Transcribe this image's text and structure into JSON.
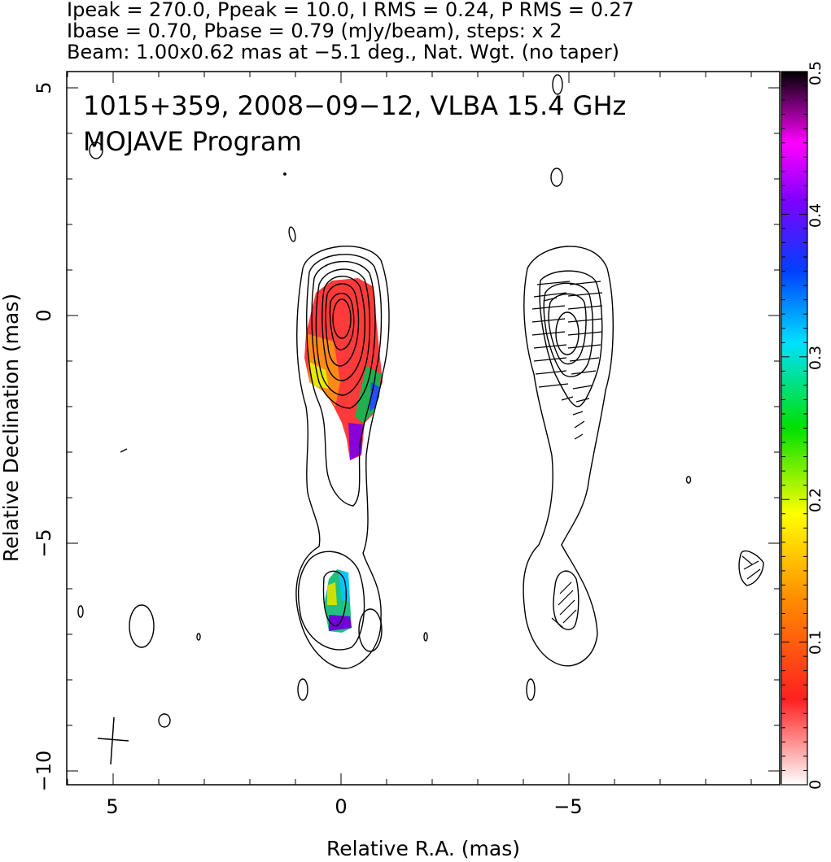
{
  "header": {
    "line1": "Ipeak = 270.0, Ppeak = 10.0, I RMS = 0.24, P RMS = 0.27",
    "line2": "Ibase = 0.70, Pbase = 0.79 (mJy/beam), steps: x 2",
    "line3": "Beam: 1.00x0.62 mas at −5.1 deg., Nat. Wgt. (no taper)"
  },
  "annotations": {
    "source_line": "1015+359, 2008−09−12, VLBA 15.4 GHz",
    "program_line": "MOJAVE Program"
  },
  "colors": {
    "contour": "#000000",
    "colorbar_stops": [
      "#ffffff",
      "#ff2020",
      "#ff8c00",
      "#ffff00",
      "#00e000",
      "#00e0ff",
      "#0040ff",
      "#8000ff",
      "#ff00ff",
      "#000000"
    ]
  },
  "chart_data": {
    "type": "heatmap",
    "xlabel": "Relative R.A. (mas)",
    "ylabel": "Relative Declination (mas)",
    "xlim": [
      5,
      -5
    ],
    "ylim": [
      -10,
      5
    ],
    "x_ticks": [
      "5",
      "0",
      "−5"
    ],
    "y_ticks": [
      "5",
      "0",
      "−5",
      "−10"
    ],
    "colorbar": {
      "range": [
        0,
        0.5
      ],
      "ticks": [
        "0",
        "0.1",
        "0.2",
        "0.3",
        "0.4",
        "0.5"
      ]
    },
    "panels": [
      {
        "name": "left",
        "components": [
          {
            "x": 0.0,
            "y": -0.1,
            "levels": 8
          },
          {
            "x": -0.1,
            "y": -6.4,
            "levels": 3
          }
        ],
        "polarization_color_patches": [
          {
            "x": 0.0,
            "y": -0.4,
            "fraction": 0.05
          },
          {
            "x": -0.5,
            "y": -1.8,
            "fraction": 0.2
          },
          {
            "x": -0.3,
            "y": -6.4,
            "fraction": 0.3
          }
        ]
      },
      {
        "name": "right",
        "components": [
          {
            "x": -4.9,
            "y": -0.5,
            "levels": 5
          },
          {
            "x": -5.0,
            "y": -6.3,
            "levels": 1
          }
        ],
        "evpa_tick_count": 32
      }
    ]
  }
}
